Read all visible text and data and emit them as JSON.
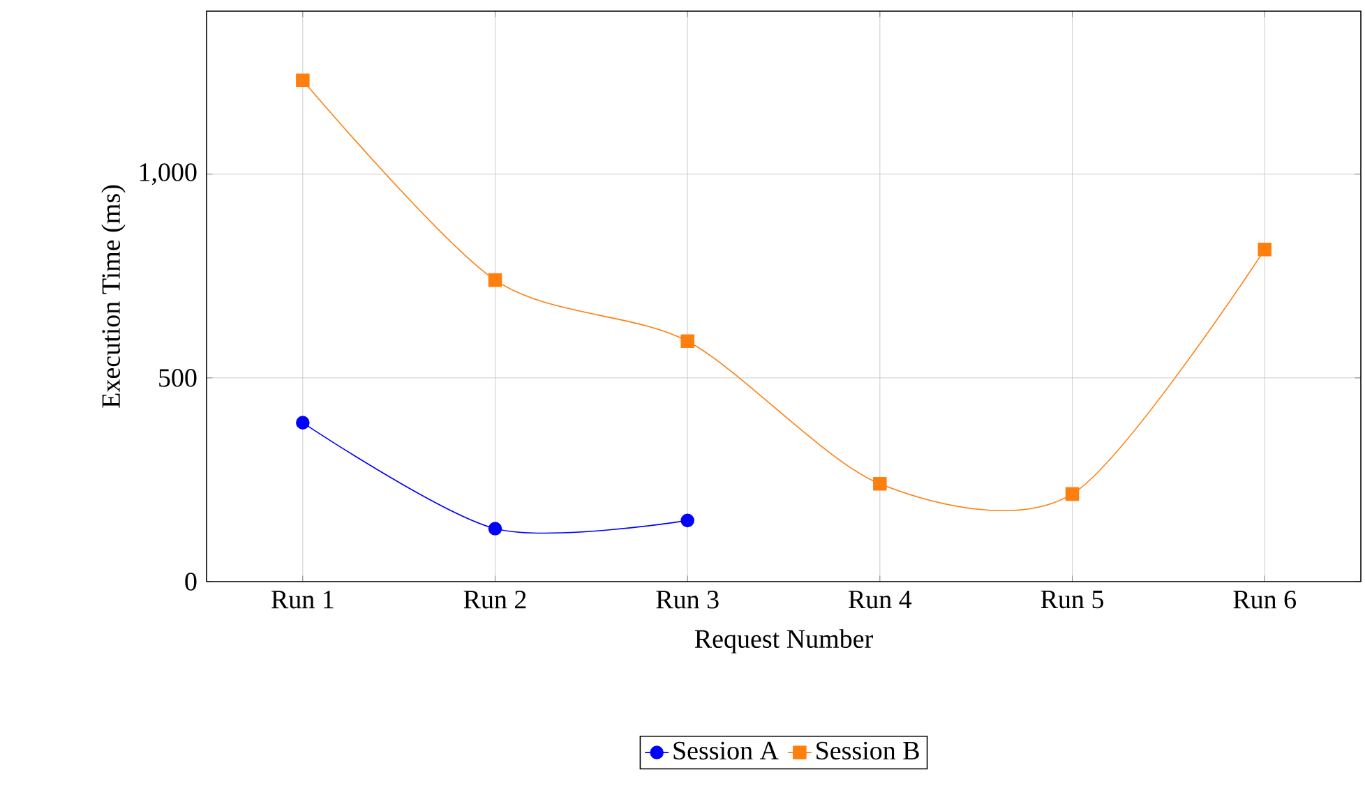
{
  "chart_data": {
    "type": "line",
    "xlabel": "Request Number",
    "ylabel": "Execution Time (ms)",
    "categories": [
      "Run 1",
      "Run 2",
      "Run 3",
      "Run 4",
      "Run 5",
      "Run 6"
    ],
    "series": [
      {
        "name": "Session A",
        "color": "#0000ff",
        "marker": "circle",
        "values": [
          390,
          130,
          150,
          null,
          null,
          null
        ]
      },
      {
        "name": "Session B",
        "color": "#ff7f0e",
        "marker": "square",
        "values": [
          1230,
          740,
          590,
          240,
          215,
          815
        ]
      }
    ],
    "ylim": [
      0,
      1400
    ],
    "yticks": [
      0,
      500,
      {
        "value": 1000,
        "label": "1,000"
      }
    ],
    "grid": true,
    "legend": "bottom"
  }
}
